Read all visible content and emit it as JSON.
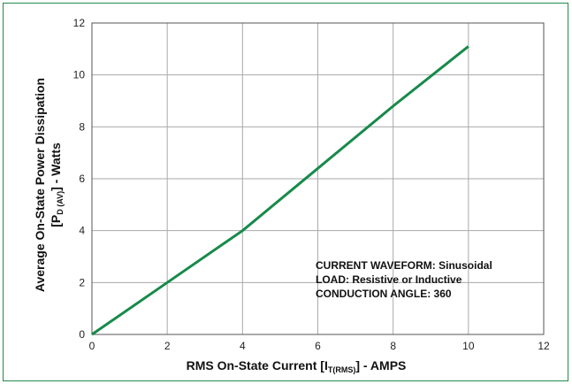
{
  "chart_data": {
    "type": "line",
    "xlabel": {
      "prefix": "RMS On-State Current [I",
      "subscript": "T(RMS)",
      "suffix": "] - AMPS"
    },
    "ylabel": {
      "line1": "Average On-State Power Dissipation",
      "line2_prefix": "[P",
      "line2_subscript": "D (AV)",
      "line2_suffix": "] - Watts"
    },
    "xlim": [
      0,
      12
    ],
    "ylim": [
      0,
      12
    ],
    "x_ticks": [
      "0",
      "2",
      "4",
      "6",
      "8",
      "10",
      "12"
    ],
    "y_ticks": [
      "0",
      "2",
      "4",
      "6",
      "8",
      "10",
      "12"
    ],
    "grid": true,
    "series": [
      {
        "x": [
          0,
          2,
          4,
          6,
          8,
          10
        ],
        "y": [
          0,
          2.0,
          4.0,
          6.4,
          8.8,
          11.1
        ],
        "color": "#178a4a"
      }
    ],
    "annotations": [
      "CURRENT  WAVEFORM:  Sinusoidal",
      "LOAD:  Resistive or Inductive",
      "CONDUCTION ANGLE:  360"
    ]
  },
  "colors": {
    "frame": "#1f8a4c",
    "grid": "#aaaaaa",
    "line": "#178a4a"
  }
}
